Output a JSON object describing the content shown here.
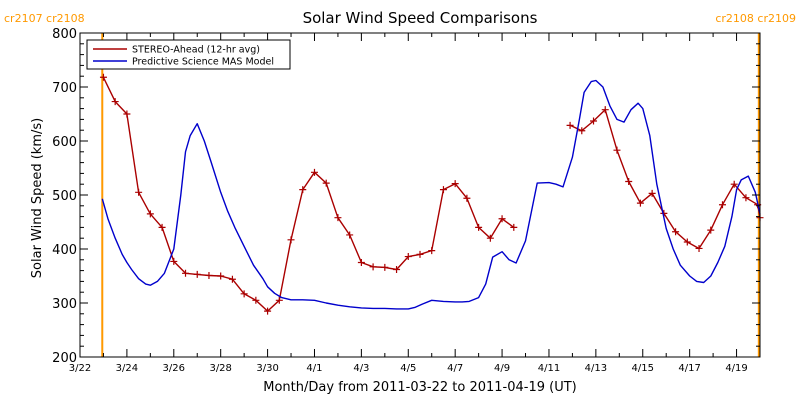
{
  "chart_data": {
    "type": "line",
    "title": "Solar Wind Speed Comparisons",
    "xlabel": "Month/Day from 2011-03-22 to 2011-04-19 (UT)",
    "ylabel": "Solar Wind Speed (km/s)",
    "xlim": [
      0,
      29
    ],
    "ylim": [
      200,
      800
    ],
    "x_ticks": [
      {
        "x": 0,
        "label": "3/22"
      },
      {
        "x": 2,
        "label": "3/24"
      },
      {
        "x": 4,
        "label": "3/26"
      },
      {
        "x": 6,
        "label": "3/28"
      },
      {
        "x": 8,
        "label": "3/30"
      },
      {
        "x": 10,
        "label": "4/1"
      },
      {
        "x": 12,
        "label": "4/3"
      },
      {
        "x": 14,
        "label": "4/5"
      },
      {
        "x": 16,
        "label": "4/7"
      },
      {
        "x": 18,
        "label": "4/9"
      },
      {
        "x": 20,
        "label": "4/11"
      },
      {
        "x": 22,
        "label": "4/13"
      },
      {
        "x": 24,
        "label": "4/15"
      },
      {
        "x": 26,
        "label": "4/17"
      },
      {
        "x": 28,
        "label": "4/19"
      }
    ],
    "y_ticks": [
      200,
      300,
      400,
      500,
      600,
      700,
      800
    ],
    "grid": false,
    "legend": "top-left",
    "carrington_markers": [
      {
        "x": 0.95,
        "label": "cr2107  cr2108",
        "side": "left"
      },
      {
        "x": 28.95,
        "label": "cr2108  cr2109",
        "side": "right"
      }
    ],
    "series": [
      {
        "name": "STEREO-Ahead (12-hr avg)",
        "color": "#aa0000",
        "marker": "plus",
        "x": [
          1.0,
          1.5,
          2.0,
          2.5,
          3.0,
          3.5,
          4.0,
          4.5,
          5.0,
          5.5,
          6.0,
          6.5,
          7.0,
          7.5,
          8.0,
          8.5,
          9.0,
          9.5,
          10.0,
          10.5,
          11.0,
          11.5,
          12.0,
          12.5,
          13.0,
          13.5,
          14.0,
          14.5,
          15.0,
          15.5,
          16.0,
          16.5,
          17.0,
          17.5,
          18.0,
          18.5,
          19.0
        ],
        "y": [
          718,
          673,
          650,
          505,
          465,
          440,
          377,
          355,
          353,
          351,
          350,
          344,
          317,
          305,
          285,
          305,
          417,
          510,
          542,
          522,
          458,
          426,
          375,
          367,
          366,
          362,
          386,
          390,
          397,
          510,
          521,
          494,
          440,
          420,
          456,
          440,
          null
        ],
        "segment_b_x": [
          20.9,
          21.4,
          21.9,
          22.4,
          22.9,
          23.4,
          23.9,
          24.4,
          24.9,
          25.4,
          25.9,
          26.4,
          26.9,
          27.4,
          27.9,
          28.4,
          28.9,
          29.0
        ],
        "segment_b_y": [
          629,
          619,
          637,
          658,
          583,
          525,
          485,
          503,
          466,
          432,
          413,
          401,
          435,
          482,
          520,
          495,
          482,
          458
        ]
      },
      {
        "name": "Predictive Science MAS Model",
        "color": "#0000cc",
        "marker": "none",
        "x": [
          0.95,
          1.2,
          1.5,
          1.8,
          2.0,
          2.2,
          2.5,
          2.8,
          3.0,
          3.3,
          3.6,
          4.0,
          4.3,
          4.5,
          4.7,
          5.0,
          5.3,
          5.6,
          6.0,
          6.3,
          6.6,
          7.0,
          7.4,
          7.8,
          8.0,
          8.3,
          8.6,
          9.0,
          9.5,
          10.0,
          10.5,
          11.0,
          11.5,
          12.0,
          12.5,
          13.0,
          13.5,
          14.0,
          14.3,
          14.6,
          15.0,
          15.5,
          16.0,
          16.3,
          16.6,
          17.0,
          17.3,
          17.6,
          18.0,
          18.3,
          18.6,
          19.0,
          19.5,
          20.0,
          20.3,
          20.6,
          21.0,
          21.3,
          21.5,
          21.8,
          22.0,
          22.3,
          22.6,
          22.9,
          23.2,
          23.5,
          23.8,
          24.0,
          24.3,
          24.6,
          25.0,
          25.3,
          25.6,
          26.0,
          26.3,
          26.6,
          26.9,
          27.2,
          27.5,
          27.8,
          28.0,
          28.2,
          28.5,
          28.8,
          29.0
        ],
        "y": [
          493,
          455,
          420,
          390,
          375,
          362,
          345,
          335,
          333,
          340,
          355,
          400,
          500,
          580,
          610,
          632,
          600,
          560,
          505,
          470,
          440,
          405,
          370,
          345,
          330,
          318,
          310,
          306,
          306,
          305,
          300,
          296,
          293,
          291,
          290,
          290,
          289,
          289,
          292,
          298,
          305,
          303,
          302,
          302,
          303,
          310,
          335,
          385,
          395,
          380,
          374,
          415,
          522,
          523,
          520,
          515,
          570,
          640,
          690,
          710,
          712,
          700,
          665,
          640,
          635,
          658,
          670,
          660,
          610,
          520,
          438,
          400,
          370,
          350,
          340,
          338,
          350,
          375,
          405,
          460,
          510,
          528,
          535,
          505,
          465
        ]
      }
    ]
  }
}
